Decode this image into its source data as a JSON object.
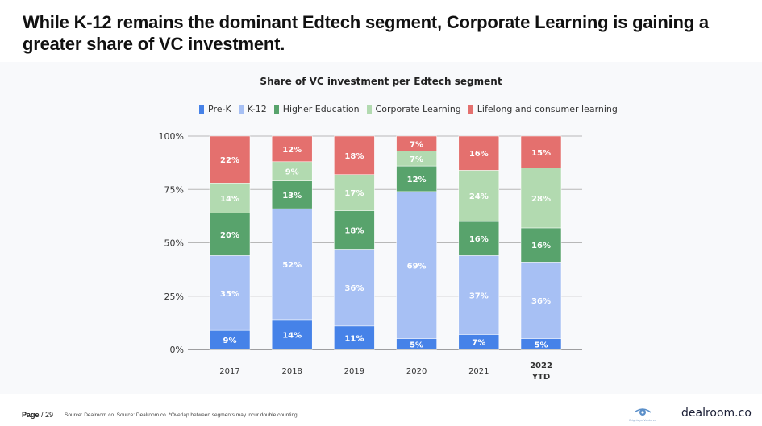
{
  "headline": "While K-12 remains the dominant Edtech segment, Corporate Learning is gaining a greater share of VC investment.",
  "footer": {
    "page_label": "Page",
    "page_number": "/ 29",
    "source": "Source: Dealroom.co. Source: Dealroom.co. *Overlap between segments may incur double counting.",
    "partner_logo": "Brighteye Ventures",
    "brand": "dealroom.co"
  },
  "chart_data": {
    "type": "bar",
    "stacked": true,
    "title": "Share of VC investment per Edtech segment",
    "xlabel": "",
    "ylabel": "",
    "ylim": [
      0,
      100
    ],
    "yticks": [
      "0%",
      "25%",
      "50%",
      "75%",
      "100%"
    ],
    "grid": true,
    "legend_position": "top",
    "categories": [
      "2017",
      "2018",
      "2019",
      "2020",
      "2021",
      "2022 YTD"
    ],
    "category_labels": [
      [
        "2017"
      ],
      [
        "2018"
      ],
      [
        "2019"
      ],
      [
        "2020"
      ],
      [
        "2021"
      ],
      [
        "2022",
        "YTD"
      ]
    ],
    "series": [
      {
        "name": "Pre-K",
        "color": "#4682e8",
        "values": [
          9,
          14,
          11,
          5,
          7,
          5
        ]
      },
      {
        "name": "K-12",
        "color": "#a7c0f4",
        "values": [
          35,
          52,
          36,
          69,
          37,
          36
        ]
      },
      {
        "name": "Higher Education",
        "color": "#58a36c",
        "values": [
          20,
          13,
          18,
          12,
          16,
          16
        ]
      },
      {
        "name": "Corporate Learning",
        "color": "#b2dab0",
        "values": [
          14,
          9,
          17,
          7,
          24,
          28
        ]
      },
      {
        "name": "Lifelong and consumer learning",
        "color": "#e4706e",
        "values": [
          22,
          12,
          18,
          7,
          16,
          15
        ]
      }
    ]
  }
}
